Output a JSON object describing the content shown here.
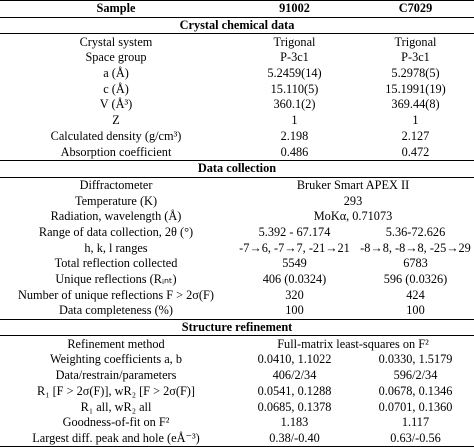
{
  "header": [
    "Sample",
    "91002",
    "C7029"
  ],
  "sections": [
    {
      "title": "Crystal chemical data",
      "rows": [
        [
          "Crystal system",
          "Trigonal",
          "Trigonal"
        ],
        [
          "Space group",
          "P-3c1",
          "P-3c1"
        ],
        [
          "a (Å)",
          "5.2459(14)",
          "5.2978(5)"
        ],
        [
          "c (Å)",
          "15.110(5)",
          "15.1991(19)"
        ],
        [
          "V (Å³)",
          "360.1(2)",
          "369.44(8)"
        ],
        [
          "Z",
          "1",
          "1"
        ],
        [
          "Calculated density (g/cm³)",
          "2.198",
          "2.127"
        ],
        [
          "Absorption coefficient",
          "0.486",
          "0.472"
        ]
      ]
    },
    {
      "title": "Data collection",
      "rows": [
        [
          "Diffractometer",
          "Bruker Smart APEX II"
        ],
        [
          "Temperature (K)",
          "293"
        ],
        [
          "Radiation, wavelength (Å)",
          "MoKα, 0.71073"
        ],
        [
          "Range of data collection, 2θ (°)",
          "5.392 - 67.174",
          "5.36-72.626"
        ],
        [
          "h, k, l ranges",
          "-7→6, -7→7, -21→21",
          "-8→8, -8→8, -25→29"
        ],
        [
          "Total reflection collected",
          "5549",
          "6783"
        ],
        [
          "Unique reflections (Rᵢₙₜ)",
          "406 (0.0324)",
          "596 (0.0326)"
        ],
        [
          "Number of unique reflections F > 2σ(F)",
          "320",
          "424"
        ],
        [
          "Data completeness (%)",
          "100",
          "100"
        ]
      ]
    },
    {
      "title": "Structure refinement",
      "rows": [
        [
          "Refinement method",
          "Full-matrix least-squares on F²"
        ],
        [
          "Weighting coefficients a, b",
          "0.0410, 1.1022",
          "0.0330, 1.5179"
        ],
        [
          "Data/restrain/parameters",
          "406/2/34",
          "596/2/34"
        ],
        [
          "R₁ [F > 2σ(F)], wR₂ [F > 2σ(F)]",
          "0.0541, 0.1288",
          "0.0678, 0.1346"
        ],
        [
          "R₁ all, wR₂ all",
          "0.0685, 0.1378",
          "0.0701, 0.1360"
        ],
        [
          "Goodness-of-fit on F²",
          "1.183",
          "1.117"
        ],
        [
          "Largest diff. peak and hole (eÅ⁻³)",
          "0.38/-0.40",
          "0.63/-0.56"
        ]
      ]
    }
  ]
}
